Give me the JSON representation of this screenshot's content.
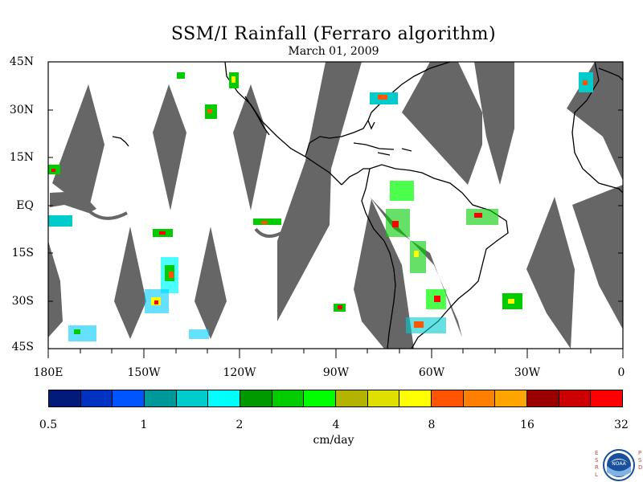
{
  "title": "SSM/I Rainfall (Ferraro algorithm)",
  "subtitle": "March 01, 2009",
  "map": {
    "lat_labels": [
      "45N",
      "30N",
      "15N",
      "EQ",
      "15S",
      "30S",
      "45S"
    ],
    "lon_labels": [
      "180E",
      "150W",
      "120W",
      "90W",
      "60W",
      "30W",
      "0"
    ],
    "land_outline_color": "#000000",
    "no_data_color": "#666666",
    "background_color": "#ffffff"
  },
  "colorbar": {
    "tick_labels": [
      "0.5",
      "1",
      "2",
      "4",
      "8",
      "16",
      "32"
    ],
    "units": "cm/day",
    "colors": [
      "#001b7a",
      "#0033c2",
      "#0055ff",
      "#009999",
      "#00cccc",
      "#00ffff",
      "#009900",
      "#00cc00",
      "#00ff00",
      "#b3b300",
      "#e0e000",
      "#ffff00",
      "#ff5500",
      "#ff7f00",
      "#ffa500",
      "#990000",
      "#cc0000",
      "#ff0000"
    ]
  },
  "logo": {
    "left_letters": "ESRL",
    "right_letters": "PSD",
    "badge_text": "NOAA"
  }
}
